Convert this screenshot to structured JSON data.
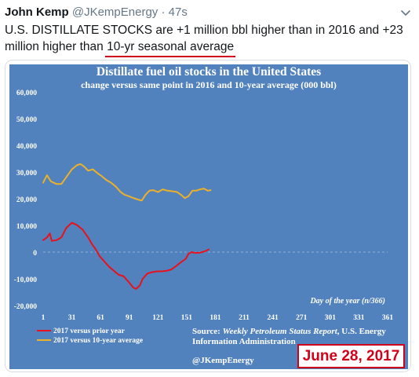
{
  "tweet": {
    "author_name": "John Kemp",
    "handle": "@JKempEnergy",
    "separator": "·",
    "time": "47s",
    "text_line1": "U.S. DISTILLATE STOCKS are +1 million bbl higher than in 2016 and +23",
    "text_line2_prefix": "million higher than ",
    "text_underlined": "10-yr seasonal average"
  },
  "icons": {
    "menu": "chevron-down-icon"
  },
  "colors": {
    "chart_background": "#5282bd",
    "prior_year_series": "#e8111c",
    "ten_year_series": "#ecb02a",
    "highlight_red": "#d0021b"
  },
  "chart_data": {
    "type": "line",
    "title": "Distillate fuel oil stocks in the United States",
    "subtitle": "change versus same point in 2016 and 10-year average (000 bbl)",
    "xlabel": "Day of the year (n/366)",
    "ylabel": "",
    "xlim": [
      1,
      361
    ],
    "ylim": [
      -20000,
      60000
    ],
    "x_ticks": [
      1,
      31,
      61,
      91,
      121,
      151,
      181,
      211,
      241,
      271,
      301,
      331,
      361
    ],
    "y_ticks": [
      60000,
      50000,
      40000,
      30000,
      20000,
      10000,
      0,
      -10000,
      -20000
    ],
    "y_tick_labels": [
      "60,000",
      "50,000",
      "40,000",
      "30,000",
      "20,000",
      "10,000",
      "0",
      "-10,000",
      "-20,000"
    ],
    "grid": false,
    "zero_line": true,
    "legend_position": "bottom-left",
    "series": [
      {
        "name": "2017 versus prior year",
        "color": "#e8111c",
        "points": [
          [
            1,
            4500
          ],
          [
            5,
            5500
          ],
          [
            8,
            7000
          ],
          [
            10,
            4200
          ],
          [
            15,
            4500
          ],
          [
            20,
            5500
          ],
          [
            25,
            9000
          ],
          [
            31,
            11000
          ],
          [
            36,
            10200
          ],
          [
            42,
            8500
          ],
          [
            48,
            5500
          ],
          [
            52,
            3000
          ],
          [
            56,
            1000
          ],
          [
            60,
            -1500
          ],
          [
            65,
            -3500
          ],
          [
            70,
            -5500
          ],
          [
            75,
            -7000
          ],
          [
            80,
            -8500
          ],
          [
            85,
            -9000
          ],
          [
            90,
            -11000
          ],
          [
            95,
            -13200
          ],
          [
            98,
            -13800
          ],
          [
            102,
            -12500
          ],
          [
            105,
            -10000
          ],
          [
            110,
            -8000
          ],
          [
            115,
            -7500
          ],
          [
            120,
            -7200
          ],
          [
            125,
            -7200
          ],
          [
            130,
            -7000
          ],
          [
            135,
            -6500
          ],
          [
            140,
            -5200
          ],
          [
            145,
            -3800
          ],
          [
            150,
            -2500
          ],
          [
            153,
            -600
          ],
          [
            156,
            0
          ],
          [
            160,
            -300
          ],
          [
            165,
            -200
          ],
          [
            170,
            300
          ],
          [
            174,
            1000
          ]
        ]
      },
      {
        "name": "2017 versus 10-year average",
        "color": "#ecb02a",
        "points": [
          [
            1,
            26000
          ],
          [
            5,
            28800
          ],
          [
            9,
            26500
          ],
          [
            15,
            25500
          ],
          [
            20,
            25500
          ],
          [
            25,
            28000
          ],
          [
            31,
            31000
          ],
          [
            36,
            32500
          ],
          [
            40,
            33000
          ],
          [
            44,
            32000
          ],
          [
            48,
            30500
          ],
          [
            53,
            31000
          ],
          [
            58,
            29500
          ],
          [
            62,
            28500
          ],
          [
            67,
            27000
          ],
          [
            72,
            26000
          ],
          [
            77,
            24500
          ],
          [
            82,
            22500
          ],
          [
            86,
            21500
          ],
          [
            90,
            21000
          ],
          [
            95,
            20300
          ],
          [
            100,
            19700
          ],
          [
            104,
            19300
          ],
          [
            108,
            21500
          ],
          [
            112,
            23000
          ],
          [
            116,
            23200
          ],
          [
            121,
            22500
          ],
          [
            126,
            23500
          ],
          [
            131,
            23000
          ],
          [
            136,
            22800
          ],
          [
            141,
            22500
          ],
          [
            145,
            21500
          ],
          [
            149,
            20200
          ],
          [
            153,
            21000
          ],
          [
            157,
            23000
          ],
          [
            161,
            23000
          ],
          [
            165,
            23500
          ],
          [
            169,
            23800
          ],
          [
            173,
            23000
          ],
          [
            176,
            23200
          ]
        ]
      }
    ],
    "source_prefix": "Source: ",
    "source_italic": "Weekly Petroleum Status Report",
    "source_suffix": ", U.S. Energy",
    "source_line2": "Information Administration",
    "credit": "@JKempEnergy",
    "date_label": "June 28, 2017"
  }
}
